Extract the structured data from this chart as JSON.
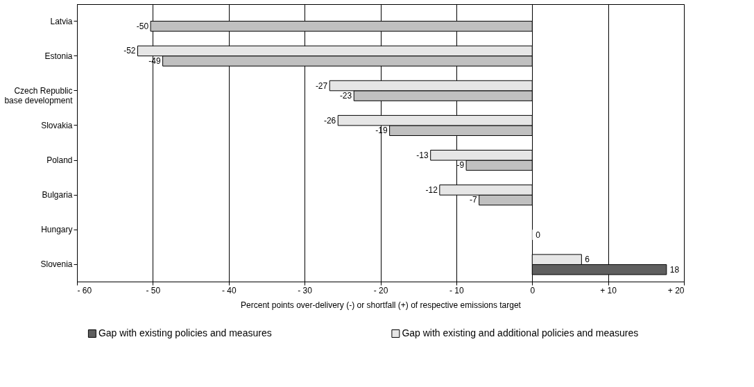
{
  "chart_data": {
    "type": "bar",
    "orientation": "horizontal",
    "categories": [
      "Latvia",
      "Estonia",
      "Czech Republic\nbase development",
      "Slovakia",
      "Poland",
      "Bulgaria",
      "Hungary",
      "Slovenia"
    ],
    "series": [
      {
        "name": "Gap with existing policies and measures",
        "color": "#5f5f5f",
        "colors": [
          "#c0c0c0",
          "#c0c0c0",
          "#c0c0c0",
          "#c0c0c0",
          "#c0c0c0",
          "#c0c0c0",
          "#c0c0c0",
          "#5f5f5f"
        ],
        "values": [
          -50.3,
          -48.7,
          -23.5,
          -18.8,
          -8.7,
          -7,
          0,
          17.7
        ],
        "value_labels": [
          "-50",
          "-49",
          "-23",
          "-19",
          "-9",
          "-7",
          "0",
          "18"
        ]
      },
      {
        "name": "Gap with existing and additional policies and measures",
        "color": "#e6e6e6",
        "colors": [
          null,
          "#e6e6e6",
          "#e6e6e6",
          "#e6e6e6",
          "#e6e6e6",
          "#e6e6e6",
          null,
          "#e6e6e6"
        ],
        "values": [
          null,
          -52,
          -26.7,
          -25.6,
          -13.4,
          -12.2,
          null,
          6.5
        ],
        "value_labels": [
          null,
          "-52",
          "-27",
          "-26",
          "-13",
          "-12",
          null,
          "6"
        ]
      }
    ],
    "xlim": [
      -60,
      20
    ],
    "xticks": [
      {
        "value": -60,
        "label": "- 60"
      },
      {
        "value": -50,
        "label": "- 50"
      },
      {
        "value": -40,
        "label": "- 40"
      },
      {
        "value": -30,
        "label": "- 30"
      },
      {
        "value": -20,
        "label": "- 20"
      },
      {
        "value": -10,
        "label": "- 10"
      },
      0,
      {
        "value": 10,
        "label": "+ 10"
      },
      {
        "value": 20,
        "label": "+ 20"
      }
    ],
    "xlabel": "Percent points over-delivery (-) or shortfall (+) of respective emissions target",
    "grid": "x",
    "legend": "bottom"
  }
}
